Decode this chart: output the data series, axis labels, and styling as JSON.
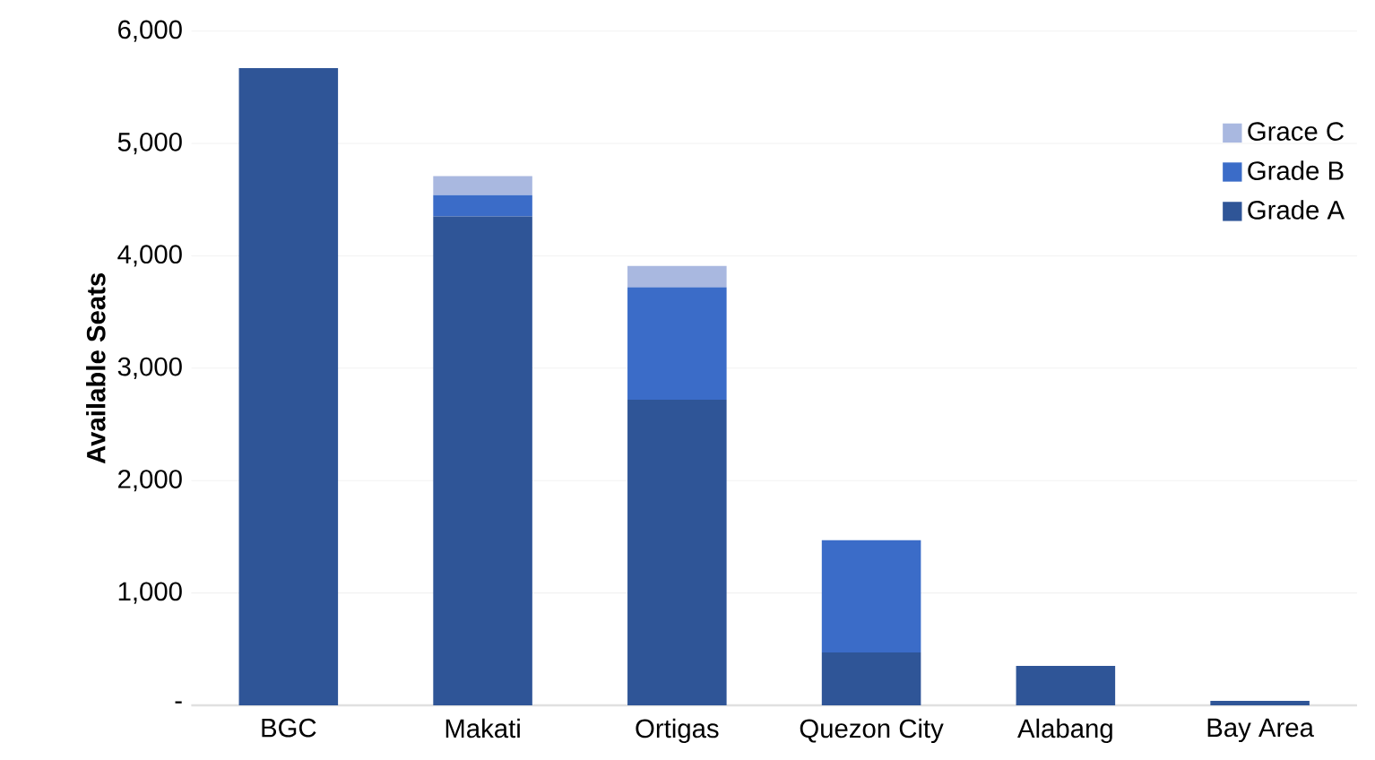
{
  "chart_data": {
    "type": "bar",
    "stacked": true,
    "ylabel": "Available Seats",
    "categories": [
      "BGC",
      "Makati",
      "Ortigas",
      "Quezon City",
      "Alabang",
      "Bay Area"
    ],
    "series": [
      {
        "name": "Grade A",
        "color": "#2f5597",
        "values": [
          5670,
          4350,
          2720,
          470,
          350,
          40
        ]
      },
      {
        "name": "Grade B",
        "color": "#3b6cc8",
        "values": [
          0,
          190,
          1000,
          1000,
          0,
          0
        ]
      },
      {
        "name": "Grace C",
        "color": "#a9b8e0",
        "values": [
          0,
          170,
          190,
          0,
          0,
          0
        ]
      }
    ],
    "ylim": [
      0,
      6000
    ],
    "yticks": [
      {
        "value": 0,
        "label": "-"
      },
      {
        "value": 1000,
        "label": "1,000"
      },
      {
        "value": 2000,
        "label": "2,000"
      },
      {
        "value": 3000,
        "label": "3,000"
      },
      {
        "value": 4000,
        "label": "4,000"
      },
      {
        "value": 5000,
        "label": "5,000"
      },
      {
        "value": 6000,
        "label": "6,000"
      }
    ],
    "grid": "y",
    "legend": "top right"
  }
}
